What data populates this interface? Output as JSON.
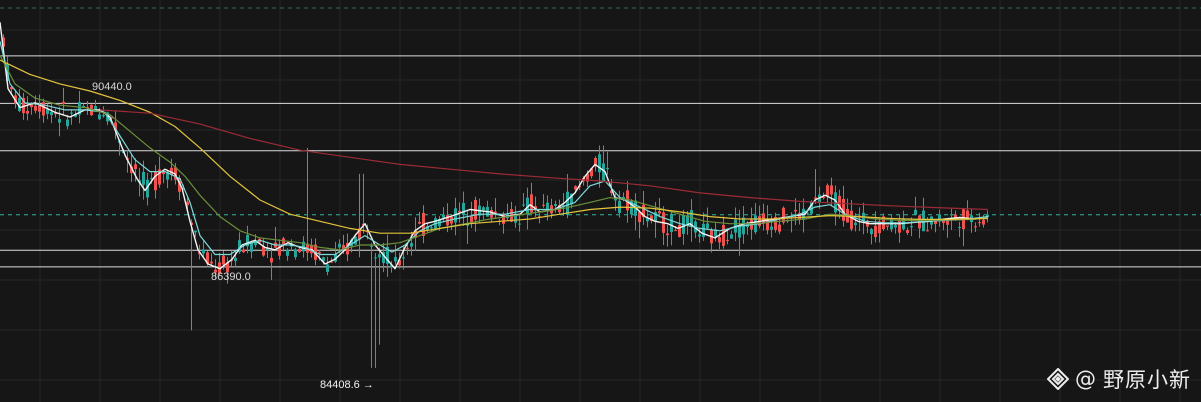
{
  "chart_data": {
    "type": "candlestick",
    "title": "",
    "xlabel": "",
    "ylabel": "",
    "ylim": [
      83900,
      92000
    ],
    "grid": true,
    "colors": {
      "background": "#161616",
      "grid": "#262626",
      "up": "#26a69a",
      "down": "#ef5350",
      "ma_white": "#f4f4f4",
      "ma_cyan": "#7fd8d8",
      "ma_green": "#6b8f3a",
      "ma_yellow": "#e3c43b",
      "ma_red": "#9c2b35",
      "level_line": "#dcdcdc",
      "current_line": "#2fb5a0"
    },
    "horizontal_levels": [
      91000,
      90000,
      89000,
      86900,
      86550
    ],
    "current_price": 87640,
    "top_dashed_level": 92000,
    "annotations": {
      "high_label": "90440.0",
      "low_label": "86390.0",
      "extreme_low_label": "84408.6 →"
    },
    "series": [
      {
        "name": "",
        "color": "#f4f4f4",
        "kind": "ma",
        "points": [
          [
            0,
            91700
          ],
          [
            8,
            90300
          ],
          [
            20,
            89900
          ],
          [
            35,
            90000
          ],
          [
            55,
            89800
          ],
          [
            70,
            89700
          ],
          [
            85,
            89850
          ],
          [
            100,
            89850
          ],
          [
            110,
            89700
          ],
          [
            125,
            88900
          ],
          [
            137,
            88400
          ],
          [
            145,
            88150
          ],
          [
            155,
            88450
          ],
          [
            165,
            88600
          ],
          [
            175,
            88500
          ],
          [
            182,
            88200
          ],
          [
            190,
            87500
          ],
          [
            198,
            86900
          ],
          [
            208,
            86600
          ],
          [
            220,
            86500
          ],
          [
            232,
            86700
          ],
          [
            242,
            87000
          ],
          [
            255,
            87100
          ],
          [
            265,
            86950
          ],
          [
            275,
            86900
          ],
          [
            288,
            87050
          ],
          [
            300,
            86950
          ],
          [
            312,
            86900
          ],
          [
            325,
            86600
          ],
          [
            335,
            86700
          ],
          [
            345,
            86900
          ],
          [
            355,
            87200
          ],
          [
            365,
            87450
          ],
          [
            375,
            87000
          ],
          [
            385,
            86750
          ],
          [
            395,
            86500
          ],
          [
            405,
            86950
          ],
          [
            415,
            87300
          ],
          [
            425,
            87450
          ],
          [
            435,
            87500
          ],
          [
            450,
            87600
          ],
          [
            470,
            87750
          ],
          [
            490,
            87700
          ],
          [
            505,
            87600
          ],
          [
            520,
            87650
          ],
          [
            530,
            87850
          ],
          [
            540,
            87700
          ],
          [
            555,
            87750
          ],
          [
            565,
            87900
          ],
          [
            575,
            88100
          ],
          [
            585,
            88450
          ],
          [
            595,
            88700
          ],
          [
            605,
            88550
          ],
          [
            615,
            88000
          ],
          [
            625,
            87950
          ],
          [
            635,
            87800
          ],
          [
            645,
            87600
          ],
          [
            655,
            87500
          ],
          [
            668,
            87450
          ],
          [
            678,
            87350
          ],
          [
            690,
            87450
          ],
          [
            702,
            87250
          ],
          [
            715,
            87150
          ],
          [
            730,
            87350
          ],
          [
            745,
            87450
          ],
          [
            760,
            87500
          ],
          [
            775,
            87550
          ],
          [
            790,
            87600
          ],
          [
            805,
            87650
          ],
          [
            815,
            87950
          ],
          [
            825,
            88050
          ],
          [
            835,
            87950
          ],
          [
            845,
            87650
          ],
          [
            858,
            87500
          ],
          [
            870,
            87450
          ],
          [
            885,
            87450
          ],
          [
            900,
            87450
          ],
          [
            915,
            87480
          ],
          [
            930,
            87500
          ],
          [
            945,
            87550
          ],
          [
            960,
            87580
          ],
          [
            975,
            87550
          ],
          [
            988,
            87600
          ]
        ]
      },
      {
        "name": "",
        "color": "#7fd8d8",
        "kind": "ma",
        "points": [
          [
            0,
            91300
          ],
          [
            10,
            90400
          ],
          [
            25,
            90000
          ],
          [
            45,
            89950
          ],
          [
            65,
            89850
          ],
          [
            85,
            89850
          ],
          [
            105,
            89800
          ],
          [
            120,
            89300
          ],
          [
            135,
            88800
          ],
          [
            150,
            88550
          ],
          [
            165,
            88550
          ],
          [
            180,
            88400
          ],
          [
            190,
            87900
          ],
          [
            200,
            87200
          ],
          [
            215,
            86800
          ],
          [
            230,
            86800
          ],
          [
            245,
            87000
          ],
          [
            260,
            87100
          ],
          [
            275,
            87000
          ],
          [
            290,
            87000
          ],
          [
            305,
            86950
          ],
          [
            320,
            86800
          ],
          [
            335,
            86800
          ],
          [
            350,
            87000
          ],
          [
            365,
            87200
          ],
          [
            380,
            87000
          ],
          [
            392,
            86850
          ],
          [
            405,
            87000
          ],
          [
            420,
            87300
          ],
          [
            435,
            87450
          ],
          [
            455,
            87550
          ],
          [
            480,
            87650
          ],
          [
            505,
            87650
          ],
          [
            530,
            87750
          ],
          [
            555,
            87750
          ],
          [
            575,
            87900
          ],
          [
            590,
            88250
          ],
          [
            605,
            88350
          ],
          [
            620,
            88000
          ],
          [
            640,
            87800
          ],
          [
            660,
            87600
          ],
          [
            680,
            87450
          ],
          [
            700,
            87350
          ],
          [
            720,
            87300
          ],
          [
            740,
            87400
          ],
          [
            760,
            87450
          ],
          [
            780,
            87550
          ],
          [
            800,
            87650
          ],
          [
            815,
            87800
          ],
          [
            830,
            87850
          ],
          [
            845,
            87650
          ],
          [
            865,
            87500
          ],
          [
            885,
            87470
          ],
          [
            905,
            87470
          ],
          [
            925,
            87500
          ],
          [
            945,
            87520
          ],
          [
            965,
            87540
          ],
          [
            988,
            87600
          ]
        ]
      },
      {
        "name": "",
        "color": "#6b8f3a",
        "kind": "ma",
        "points": [
          [
            0,
            91000
          ],
          [
            15,
            90400
          ],
          [
            35,
            90100
          ],
          [
            60,
            89950
          ],
          [
            85,
            89900
          ],
          [
            110,
            89750
          ],
          [
            130,
            89400
          ],
          [
            150,
            89050
          ],
          [
            170,
            88750
          ],
          [
            185,
            88450
          ],
          [
            200,
            88050
          ],
          [
            220,
            87600
          ],
          [
            240,
            87300
          ],
          [
            260,
            87150
          ],
          [
            280,
            87100
          ],
          [
            300,
            87050
          ],
          [
            320,
            86950
          ],
          [
            340,
            86900
          ],
          [
            360,
            87000
          ],
          [
            380,
            87000
          ],
          [
            400,
            87050
          ],
          [
            420,
            87200
          ],
          [
            440,
            87350
          ],
          [
            465,
            87450
          ],
          [
            490,
            87550
          ],
          [
            515,
            87620
          ],
          [
            540,
            87700
          ],
          [
            565,
            87780
          ],
          [
            590,
            87900
          ],
          [
            610,
            88000
          ],
          [
            630,
            87950
          ],
          [
            655,
            87800
          ],
          [
            680,
            87650
          ],
          [
            705,
            87500
          ],
          [
            730,
            87450
          ],
          [
            755,
            87450
          ],
          [
            780,
            87500
          ],
          [
            805,
            87550
          ],
          [
            830,
            87650
          ],
          [
            850,
            87620
          ],
          [
            875,
            87550
          ],
          [
            900,
            87520
          ],
          [
            925,
            87520
          ],
          [
            950,
            87530
          ],
          [
            970,
            87540
          ],
          [
            988,
            87570
          ]
        ]
      },
      {
        "name": "",
        "color": "#e3c43b",
        "kind": "ma",
        "points": [
          [
            0,
            90900
          ],
          [
            30,
            90600
          ],
          [
            60,
            90400
          ],
          [
            90,
            90250
          ],
          [
            120,
            90050
          ],
          [
            150,
            89800
          ],
          [
            175,
            89500
          ],
          [
            200,
            89050
          ],
          [
            230,
            88450
          ],
          [
            260,
            87950
          ],
          [
            290,
            87650
          ],
          [
            320,
            87500
          ],
          [
            350,
            87350
          ],
          [
            380,
            87250
          ],
          [
            410,
            87250
          ],
          [
            440,
            87350
          ],
          [
            470,
            87450
          ],
          [
            500,
            87500
          ],
          [
            530,
            87550
          ],
          [
            560,
            87650
          ],
          [
            590,
            87750
          ],
          [
            620,
            87800
          ],
          [
            650,
            87780
          ],
          [
            680,
            87700
          ],
          [
            710,
            87600
          ],
          [
            740,
            87550
          ],
          [
            770,
            87550
          ],
          [
            800,
            87580
          ],
          [
            830,
            87620
          ],
          [
            860,
            87600
          ],
          [
            890,
            87560
          ],
          [
            920,
            87540
          ],
          [
            950,
            87540
          ],
          [
            988,
            87560
          ]
        ]
      },
      {
        "name": "",
        "color": "#9c2b35",
        "kind": "ma",
        "points": [
          [
            100,
            89850
          ],
          [
            150,
            89780
          ],
          [
            200,
            89550
          ],
          [
            250,
            89250
          ],
          [
            300,
            89000
          ],
          [
            350,
            88850
          ],
          [
            400,
            88700
          ],
          [
            450,
            88600
          ],
          [
            500,
            88500
          ],
          [
            550,
            88420
          ],
          [
            600,
            88350
          ],
          [
            650,
            88250
          ],
          [
            700,
            88100
          ],
          [
            750,
            88000
          ],
          [
            800,
            87920
          ],
          [
            850,
            87870
          ],
          [
            900,
            87820
          ],
          [
            950,
            87780
          ],
          [
            988,
            87750
          ]
        ]
      }
    ]
  },
  "watermark": {
    "at_symbol": "@",
    "name": "野原小新"
  }
}
